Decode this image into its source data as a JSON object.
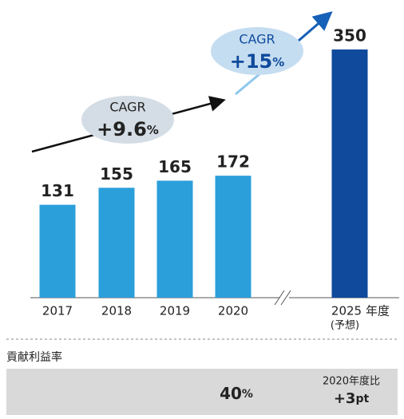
{
  "chart_data": {
    "type": "bar",
    "categories": [
      "2017",
      "2018",
      "2019",
      "2020",
      "2025"
    ],
    "values": [
      131,
      155,
      165,
      172,
      350
    ],
    "colors": [
      "#2b9fda",
      "#2b9fda",
      "#2b9fda",
      "#2b9fda",
      "#0f4a9c"
    ],
    "category_unit": "年度",
    "forecast_label": "(予想)",
    "annotations": [
      {
        "label": "CAGR",
        "value": "+9.6",
        "unit": "%"
      },
      {
        "label": "CAGR",
        "value": "+15",
        "unit": "%"
      }
    ]
  },
  "footer": {
    "title": "貢献利益率",
    "rate": "40",
    "rate_unit": "%",
    "comparison_label": "2020年度比",
    "change": "+3",
    "change_unit": "pt"
  }
}
